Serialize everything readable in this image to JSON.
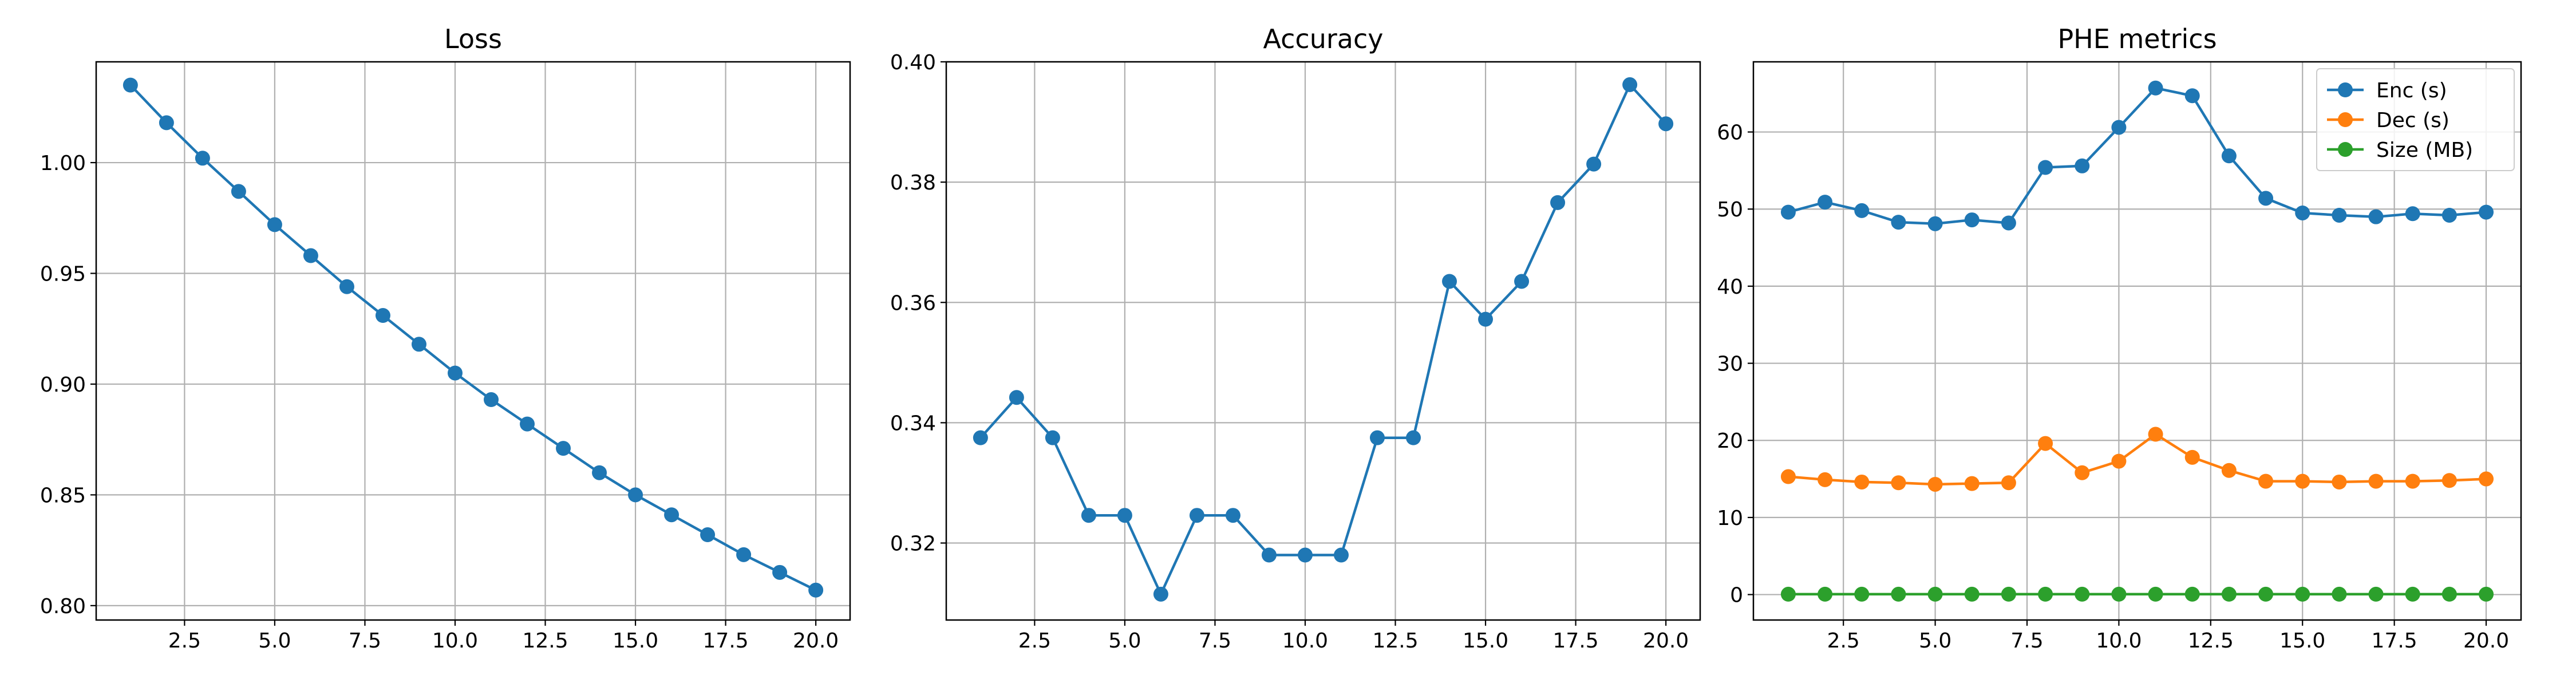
{
  "chart_data": [
    {
      "type": "line",
      "title": "Loss",
      "xlabel": "",
      "ylabel": "",
      "x": [
        1,
        2,
        3,
        4,
        5,
        6,
        7,
        8,
        9,
        10,
        11,
        12,
        13,
        14,
        15,
        16,
        17,
        18,
        19,
        20
      ],
      "xlim": [
        0.05,
        20.95
      ],
      "ylim": [
        0.7935,
        1.0455
      ],
      "xticks": [
        2.5,
        5.0,
        7.5,
        10.0,
        12.5,
        15.0,
        17.5,
        20.0
      ],
      "xtick_labels": [
        "2.5",
        "5.0",
        "7.5",
        "10.0",
        "12.5",
        "15.0",
        "17.5",
        "20.0"
      ],
      "yticks": [
        0.8,
        0.85,
        0.9,
        0.95,
        1.0
      ],
      "ytick_labels": [
        "0.80",
        "0.85",
        "0.90",
        "0.95",
        "1.00"
      ],
      "grid": true,
      "legend": null,
      "series": [
        {
          "color": "#1f77b4",
          "values": [
            1.035,
            1.018,
            1.002,
            0.987,
            0.972,
            0.958,
            0.944,
            0.931,
            0.918,
            0.905,
            0.893,
            0.882,
            0.871,
            0.86,
            0.85,
            0.841,
            0.832,
            0.823,
            0.815,
            0.807
          ]
        }
      ]
    },
    {
      "type": "line",
      "title": "Accuracy",
      "xlabel": "",
      "ylabel": "",
      "x": [
        1,
        2,
        3,
        4,
        5,
        6,
        7,
        8,
        9,
        10,
        11,
        12,
        13,
        14,
        15,
        16,
        17,
        18,
        19,
        20
      ],
      "xlim": [
        0.05,
        20.95
      ],
      "ylim": [
        0.3072,
        0.4
      ],
      "xticks": [
        2.5,
        5.0,
        7.5,
        10.0,
        12.5,
        15.0,
        17.5,
        20.0
      ],
      "xtick_labels": [
        "2.5",
        "5.0",
        "7.5",
        "10.0",
        "12.5",
        "15.0",
        "17.5",
        "20.0"
      ],
      "yticks": [
        0.32,
        0.34,
        0.36,
        0.38,
        0.4
      ],
      "ytick_labels": [
        "0.32",
        "0.34",
        "0.36",
        "0.38",
        "0.40"
      ],
      "grid": true,
      "legend": null,
      "series": [
        {
          "color": "#1f77b4",
          "values": [
            0.3375,
            0.3442,
            0.3375,
            0.3246,
            0.3246,
            0.3115,
            0.3246,
            0.3246,
            0.318,
            0.318,
            0.318,
            0.3375,
            0.3375,
            0.3635,
            0.3572,
            0.3635,
            0.3766,
            0.383,
            0.3962,
            0.3897
          ]
        }
      ]
    },
    {
      "type": "line",
      "title": "PHE metrics",
      "xlabel": "",
      "ylabel": "",
      "x": [
        1,
        2,
        3,
        4,
        5,
        6,
        7,
        8,
        9,
        10,
        11,
        12,
        13,
        14,
        15,
        16,
        17,
        18,
        19,
        20
      ],
      "xlim": [
        0.05,
        20.95
      ],
      "ylim": [
        -3.3,
        69.1
      ],
      "xticks": [
        2.5,
        5.0,
        7.5,
        10.0,
        12.5,
        15.0,
        17.5,
        20.0
      ],
      "xtick_labels": [
        "2.5",
        "5.0",
        "7.5",
        "10.0",
        "12.5",
        "15.0",
        "17.5",
        "20.0"
      ],
      "yticks": [
        0,
        10,
        20,
        30,
        40,
        50,
        60
      ],
      "ytick_labels": [
        "0",
        "10",
        "20",
        "30",
        "40",
        "50",
        "60"
      ],
      "grid": true,
      "legend": "top-right",
      "series": [
        {
          "name": "Enc (s)",
          "color": "#1f77b4",
          "values": [
            49.6,
            50.9,
            49.8,
            48.3,
            48.1,
            48.6,
            48.2,
            55.4,
            55.6,
            60.6,
            65.7,
            64.7,
            56.9,
            51.4,
            49.5,
            49.2,
            49.0,
            49.4,
            49.2,
            49.6
          ]
        },
        {
          "name": "Dec (s)",
          "color": "#ff7f0e",
          "values": [
            15.3,
            14.9,
            14.6,
            14.5,
            14.3,
            14.4,
            14.5,
            19.6,
            15.8,
            17.3,
            20.8,
            17.8,
            16.1,
            14.7,
            14.7,
            14.6,
            14.7,
            14.7,
            14.8,
            15.0
          ]
        },
        {
          "name": "Size (MB)",
          "color": "#2ca02c",
          "values": [
            0.05,
            0.05,
            0.05,
            0.05,
            0.05,
            0.05,
            0.05,
            0.05,
            0.05,
            0.05,
            0.05,
            0.05,
            0.05,
            0.05,
            0.05,
            0.05,
            0.05,
            0.05,
            0.05,
            0.05
          ]
        }
      ]
    }
  ]
}
